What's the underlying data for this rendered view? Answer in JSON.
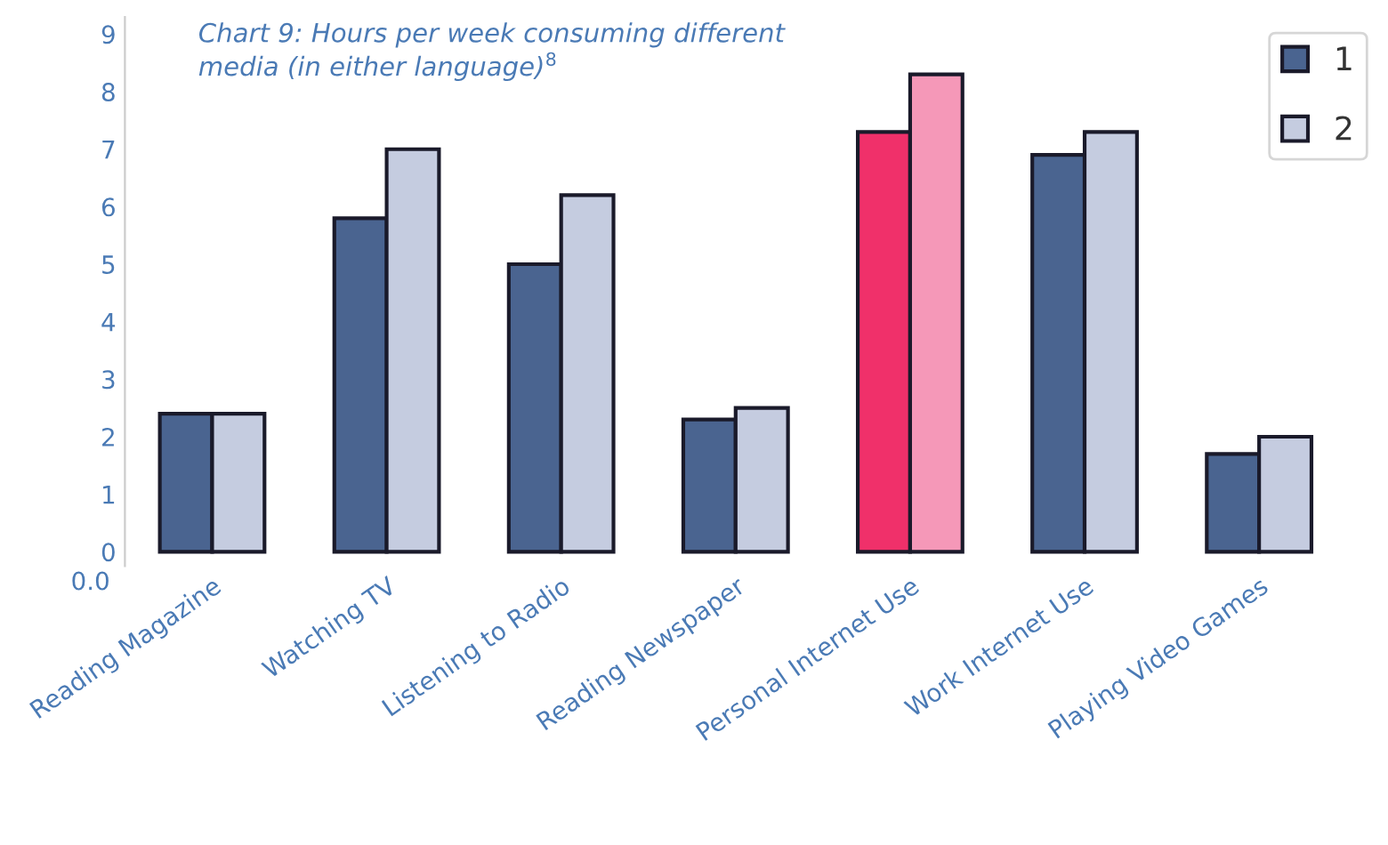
{
  "chart_data": {
    "type": "bar",
    "title": "Chart 9: Hours per week consuming different\nmedia (in either language)$^{8}$",
    "categories": [
      "Reading Magazine",
      "Watching TV",
      "Listening to Radio",
      "Reading Newspaper",
      "Personal Internet Use",
      "Work Internet Use",
      "Playing Video Games"
    ],
    "series": [
      {
        "name": "1",
        "color": "#4a6490",
        "colors": [
          "#4a6490",
          "#4a6490",
          "#4a6490",
          "#4a6490",
          "#f0306a",
          "#4a6490",
          "#4a6490"
        ],
        "values": [
          2.4,
          5.8,
          5.0,
          2.3,
          7.3,
          6.9,
          1.7
        ]
      },
      {
        "name": "2",
        "color": "#c5cce0",
        "colors": [
          "#c5cce0",
          "#c5cce0",
          "#c5cce0",
          "#c5cce0",
          "#f598b8",
          "#c5cce0",
          "#c5cce0"
        ],
        "values": [
          2.4,
          7.0,
          6.2,
          2.5,
          8.3,
          7.3,
          2.0
        ]
      }
    ],
    "ylim": [
      -0.25,
      9.3
    ],
    "yticks": [
      0,
      1,
      2,
      3,
      4,
      5,
      6,
      7,
      8,
      9
    ],
    "annotations": [
      "0.0"
    ],
    "grid": false,
    "legend": "top right"
  }
}
